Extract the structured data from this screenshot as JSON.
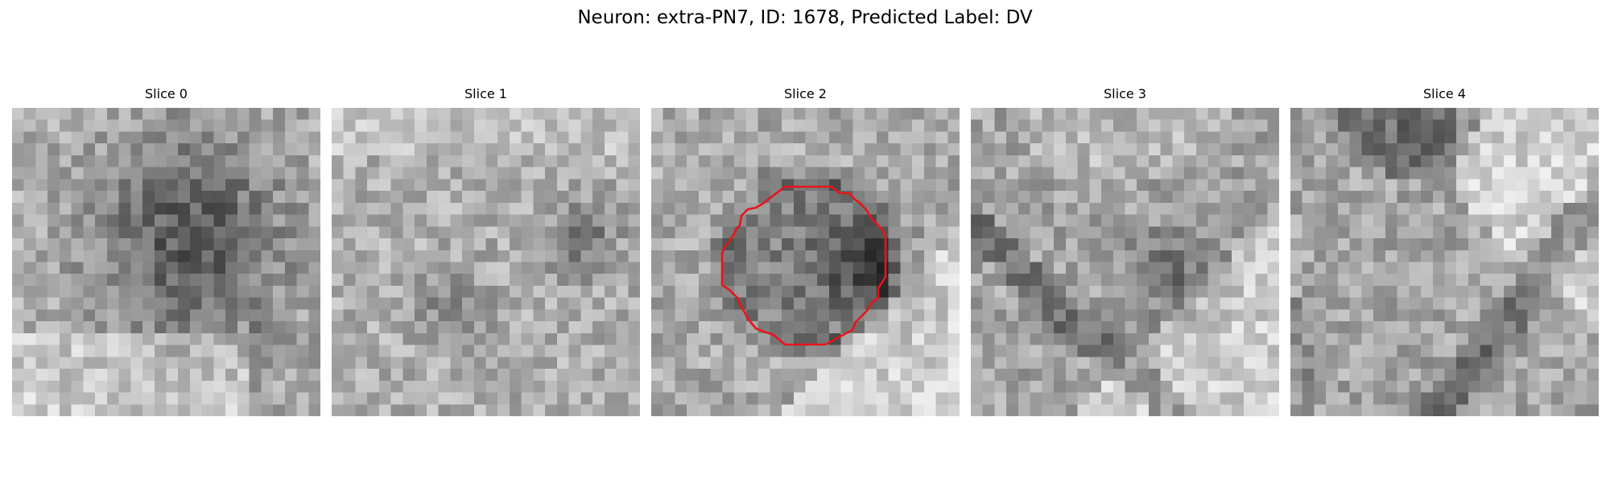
{
  "figure": {
    "title": "Neuron: extra-PN7, ID: 1678, Predicted Label: DV"
  },
  "slices": [
    {
      "title": "Slice 0",
      "has_roi": false
    },
    {
      "title": "Slice 1",
      "has_roi": false
    },
    {
      "title": "Slice 2",
      "has_roi": true
    },
    {
      "title": "Slice 3",
      "has_roi": false
    },
    {
      "title": "Slice 4",
      "has_roi": false
    }
  ],
  "colors": {
    "roi_outline": "#e8141a",
    "background": "#ffffff",
    "colormap": "gray"
  }
}
